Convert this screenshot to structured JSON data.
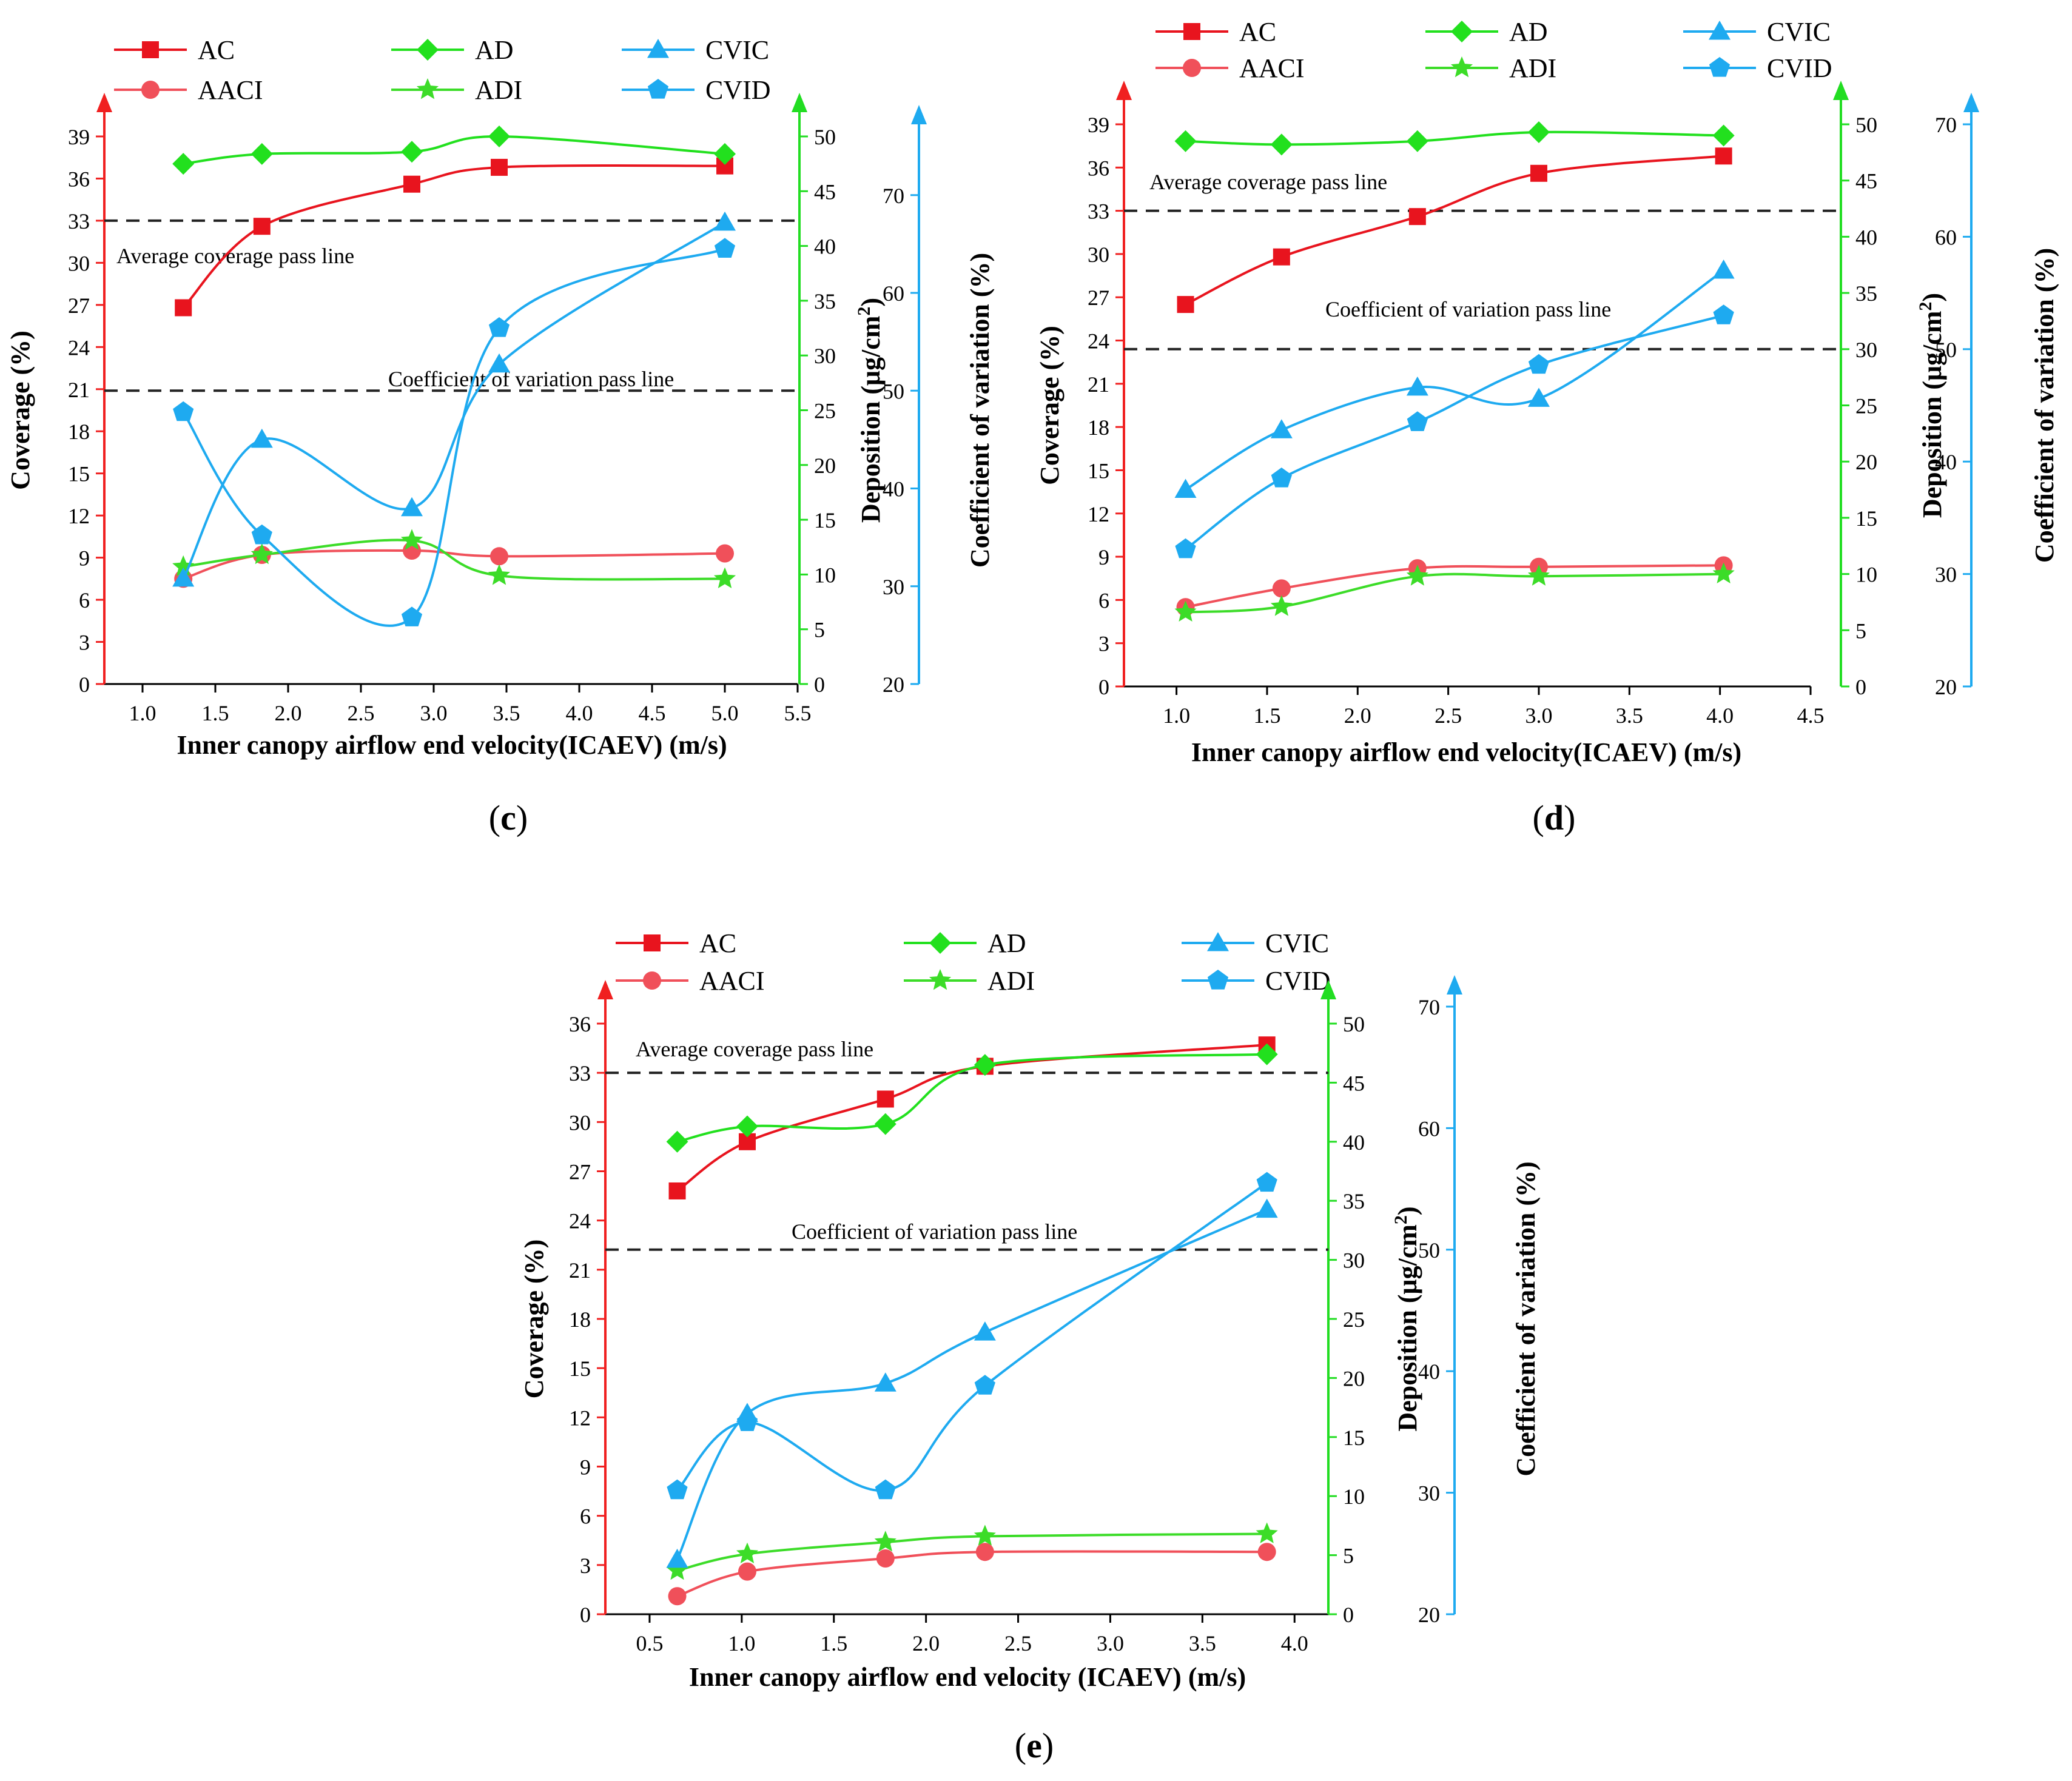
{
  "colors": {
    "ac": "#E8141E",
    "aaci": "#F0505A",
    "ad": "#22E01E",
    "adi": "#3CDC28",
    "cvic": "#1EAAF0",
    "cvid": "#1EAAF0",
    "coverage_axis": "#F02020",
    "deposition_axis": "#22DD22",
    "cv_axis": "#1EAAF0",
    "pass_line": "#222222"
  },
  "legend": {
    "ac": "AC",
    "aaci": "AACI",
    "ad": "AD",
    "adi": "ADI",
    "cvic": "CVIC",
    "cvid": "CVID"
  },
  "axis_titles": {
    "coverage": "Coverage (%)",
    "deposition": "Deposition (μg/cm",
    "deposition_sup": "2",
    "deposition_close": ")",
    "cv": "Coefficient of variation (%)"
  },
  "annotations": {
    "avg_pass": "Average coverage pass line",
    "cv_pass": "Coefficient of variation pass line"
  },
  "chart_data": [
    {
      "type": "line",
      "panel": "c",
      "panel_label": "c",
      "xlabel": "Inner canopy airflow end velocity(ICAEV) (m/s)",
      "xlim": [
        0.75,
        5.5
      ],
      "xticks": [
        1.0,
        1.5,
        2.0,
        2.5,
        3.0,
        3.5,
        4.0,
        4.5,
        5.0,
        5.5
      ],
      "coverage_ylim": [
        0,
        39
      ],
      "coverage_ticks": [
        0,
        3,
        6,
        9,
        12,
        15,
        18,
        21,
        24,
        27,
        30,
        33,
        36,
        39
      ],
      "deposition_ylim": [
        0,
        50
      ],
      "deposition_ticks": [
        0,
        5,
        10,
        15,
        20,
        25,
        30,
        35,
        40,
        45,
        50
      ],
      "cv_ylim": [
        20,
        76
      ],
      "cv_ticks": [
        20,
        30,
        40,
        50,
        60,
        70
      ],
      "avg_coverage_pass": 33,
      "cv_pass": 50,
      "series": [
        {
          "name": "AC",
          "axis": "coverage",
          "x": [
            1.28,
            1.82,
            2.85,
            3.45,
            5.0
          ],
          "values": [
            26.8,
            32.6,
            35.6,
            36.8,
            36.9
          ]
        },
        {
          "name": "AACI",
          "axis": "coverage",
          "x": [
            1.28,
            1.82,
            2.85,
            3.45,
            5.0
          ],
          "values": [
            7.5,
            9.2,
            9.5,
            9.1,
            9.3
          ]
        },
        {
          "name": "AD",
          "axis": "deposition",
          "x": [
            1.28,
            1.82,
            2.85,
            3.45,
            5.0
          ],
          "values": [
            47.5,
            48.4,
            48.6,
            50.0,
            48.4
          ]
        },
        {
          "name": "ADI",
          "axis": "deposition",
          "x": [
            1.28,
            1.82,
            2.85,
            3.45,
            5.0
          ],
          "values": [
            10.7,
            11.8,
            13.1,
            9.9,
            9.6
          ]
        },
        {
          "name": "CVIC",
          "axis": "cv",
          "x": [
            1.28,
            1.82,
            2.85,
            3.45,
            5.0
          ],
          "values": [
            30.8,
            45.0,
            38.0,
            52.7,
            67.2
          ]
        },
        {
          "name": "CVID",
          "axis": "cv",
          "x": [
            1.28,
            1.82,
            2.85,
            3.45,
            5.0
          ],
          "values": [
            47.8,
            35.2,
            26.8,
            56.4,
            64.5
          ]
        }
      ]
    },
    {
      "type": "line",
      "panel": "d",
      "panel_label": "d",
      "xlabel": "Inner canopy airflow end velocity(ICAEV) (m/s)",
      "xlim": [
        0.7,
        4.5
      ],
      "xticks": [
        1.0,
        1.5,
        2.0,
        2.5,
        3.0,
        3.5,
        4.0,
        4.5
      ],
      "coverage_ylim": [
        0,
        39
      ],
      "coverage_ticks": [
        0,
        3,
        6,
        9,
        12,
        15,
        18,
        21,
        24,
        27,
        30,
        33,
        36,
        39
      ],
      "deposition_ylim": [
        0,
        50
      ],
      "deposition_ticks": [
        0,
        5,
        10,
        15,
        20,
        25,
        30,
        35,
        40,
        45,
        50
      ],
      "cv_ylim": [
        20,
        70
      ],
      "cv_ticks": [
        20,
        30,
        40,
        50,
        60,
        70
      ],
      "avg_coverage_pass": 33,
      "cv_pass": 50,
      "series": [
        {
          "name": "AC",
          "axis": "coverage",
          "x": [
            1.05,
            1.58,
            2.33,
            3.0,
            4.02
          ],
          "values": [
            26.5,
            29.8,
            32.6,
            35.6,
            36.8
          ]
        },
        {
          "name": "AACI",
          "axis": "coverage",
          "x": [
            1.05,
            1.58,
            2.33,
            3.0,
            4.02
          ],
          "values": [
            5.5,
            6.8,
            8.2,
            8.3,
            8.4
          ]
        },
        {
          "name": "AD",
          "axis": "deposition",
          "x": [
            1.05,
            1.58,
            2.33,
            3.0,
            4.02
          ],
          "values": [
            48.5,
            48.2,
            48.5,
            49.3,
            49.0
          ]
        },
        {
          "name": "ADI",
          "axis": "deposition",
          "x": [
            1.05,
            1.58,
            2.33,
            3.0,
            4.02
          ],
          "values": [
            6.6,
            7.1,
            9.8,
            9.8,
            10.0
          ]
        },
        {
          "name": "CVIC",
          "axis": "cv",
          "x": [
            1.05,
            1.58,
            2.33,
            3.0,
            4.02
          ],
          "values": [
            37.5,
            42.8,
            46.6,
            45.6,
            57.0
          ]
        },
        {
          "name": "CVID",
          "axis": "cv",
          "x": [
            1.05,
            1.58,
            2.33,
            3.0,
            4.02
          ],
          "values": [
            32.2,
            38.5,
            43.5,
            48.6,
            53.0
          ]
        }
      ]
    },
    {
      "type": "line",
      "panel": "e",
      "panel_label": "e",
      "xlabel": "Inner canopy airflow end velocity (ICAEV) (m/s)",
      "xlim": [
        0.25,
        4.2
      ],
      "xticks": [
        0.5,
        1.0,
        1.5,
        2.0,
        2.5,
        3.0,
        3.5,
        4.0
      ],
      "coverage_ylim": [
        0,
        36
      ],
      "coverage_ticks": [
        0,
        3,
        6,
        9,
        12,
        15,
        18,
        21,
        24,
        27,
        30,
        33,
        36
      ],
      "deposition_ylim": [
        0,
        50
      ],
      "deposition_ticks": [
        0,
        5,
        10,
        15,
        20,
        25,
        30,
        35,
        40,
        45,
        50
      ],
      "cv_ylim": [
        20,
        70
      ],
      "cv_ticks": [
        20,
        30,
        40,
        50,
        60,
        70
      ],
      "avg_coverage_pass": 33,
      "cv_pass": 50,
      "series": [
        {
          "name": "AC",
          "axis": "coverage",
          "x": [
            0.65,
            1.03,
            1.78,
            2.32,
            3.85
          ],
          "values": [
            25.8,
            28.8,
            31.4,
            33.4,
            34.7
          ]
        },
        {
          "name": "AACI",
          "axis": "coverage",
          "x": [
            0.65,
            1.03,
            1.78,
            2.32,
            3.85
          ],
          "values": [
            1.1,
            2.6,
            3.4,
            3.8,
            3.8
          ]
        },
        {
          "name": "AD",
          "axis": "deposition",
          "x": [
            0.65,
            1.03,
            1.78,
            2.32,
            3.85
          ],
          "values": [
            40.0,
            41.3,
            41.5,
            46.5,
            47.4
          ]
        },
        {
          "name": "ADI",
          "axis": "deposition",
          "x": [
            0.65,
            1.03,
            1.78,
            2.32,
            3.85
          ],
          "values": [
            3.7,
            5.1,
            6.1,
            6.6,
            6.8
          ]
        },
        {
          "name": "CVIC",
          "axis": "cv",
          "x": [
            0.65,
            1.03,
            1.78,
            2.32,
            3.85
          ],
          "values": [
            24.5,
            36.5,
            39.0,
            43.2,
            53.3
          ]
        },
        {
          "name": "CVID",
          "axis": "cv",
          "x": [
            0.65,
            1.03,
            1.78,
            2.32,
            3.85
          ],
          "values": [
            30.2,
            35.8,
            30.2,
            38.8,
            55.5
          ]
        }
      ]
    }
  ]
}
